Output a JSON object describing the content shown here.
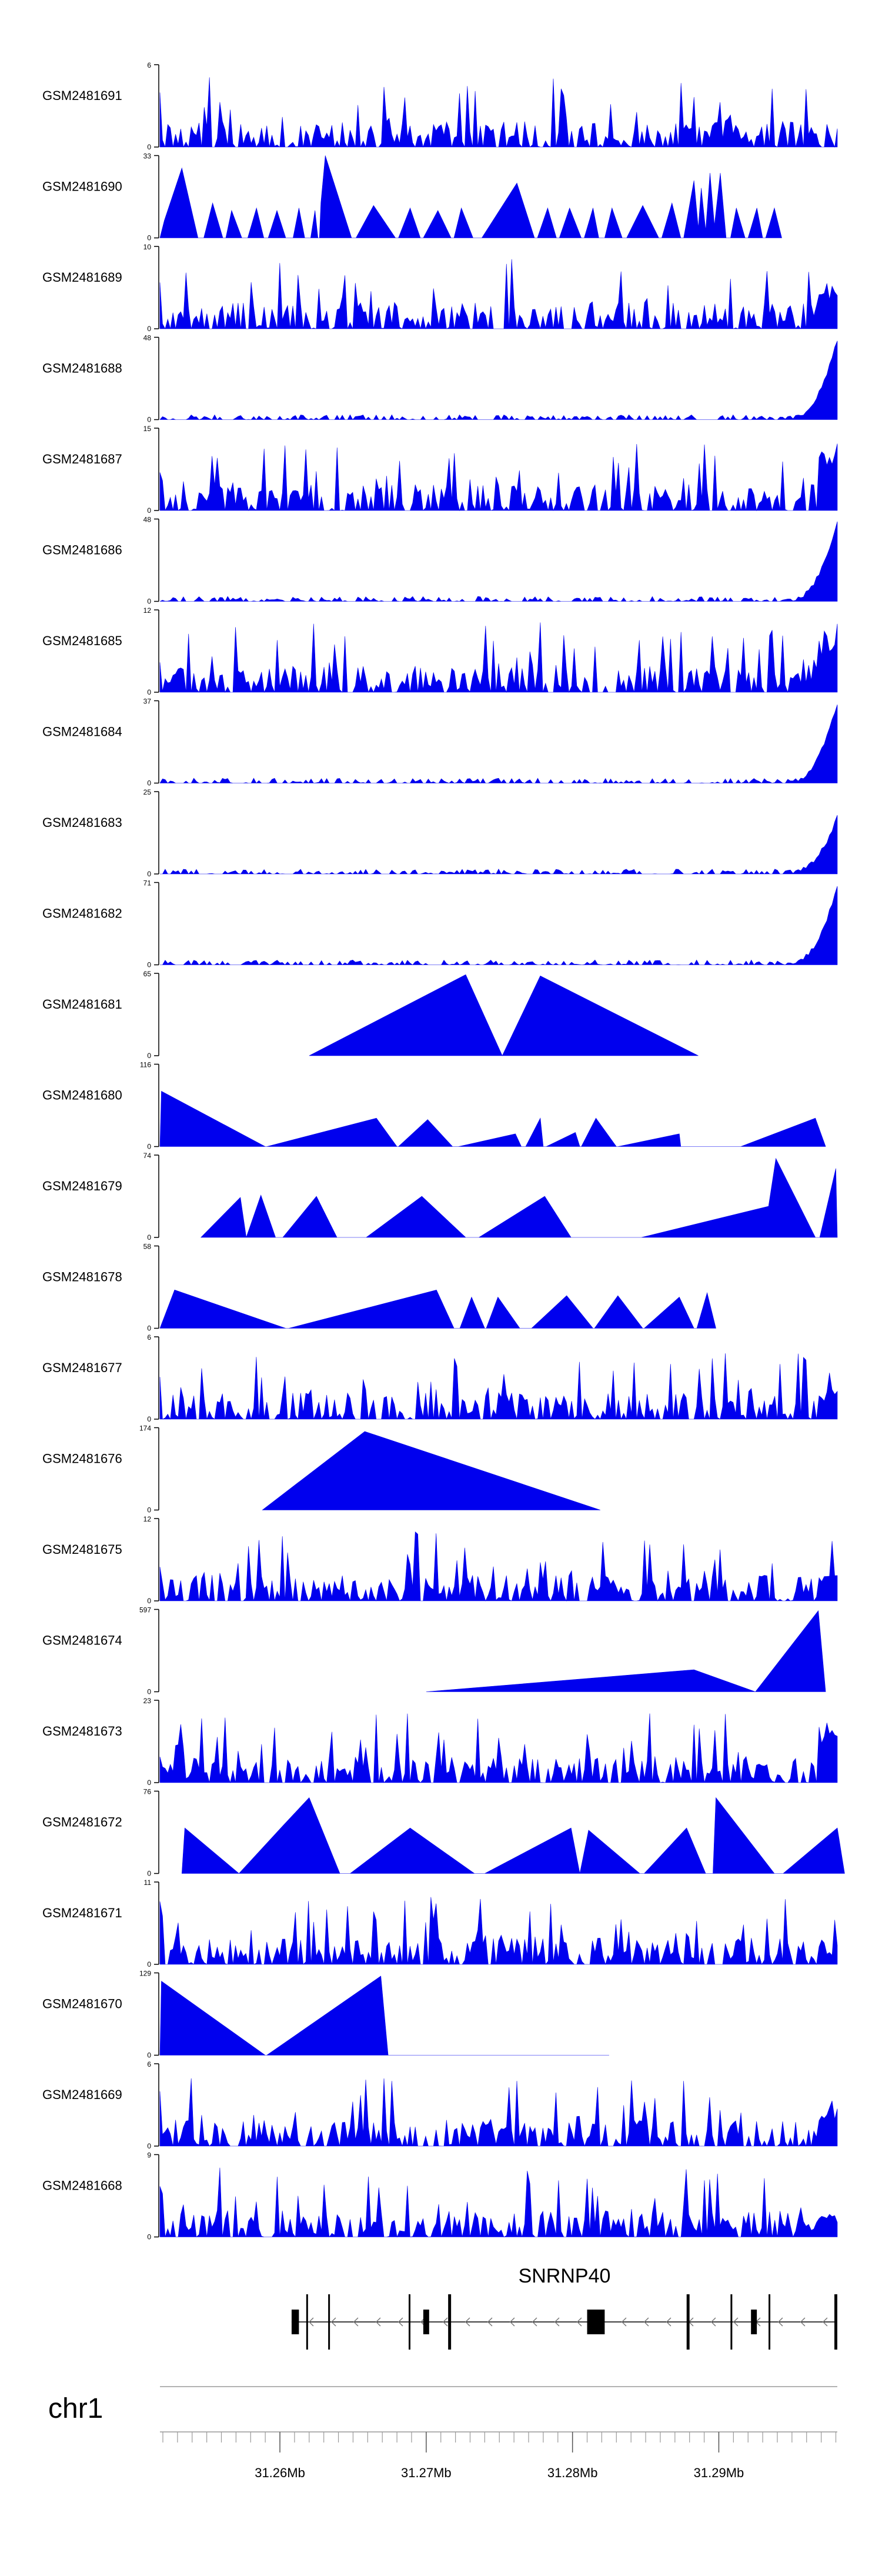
{
  "colors": {
    "fill": "#0000ee",
    "axis": "#000000",
    "track_line": "#999999",
    "gene": "#000000"
  },
  "chart_data": {
    "type": "area",
    "title": "",
    "genome": {
      "chromosome": "chr1",
      "x_range_mb": [
        31.2518,
        31.2981
      ]
    },
    "x_axis": {
      "ticks_mb": [
        31.26,
        31.27,
        31.28,
        31.29
      ],
      "tick_labels": [
        "31.26Mb",
        "31.27Mb",
        "31.28Mb",
        "31.29Mb"
      ],
      "minor_tick_step_mb": 0.001
    },
    "gene": {
      "name": "SNRNP40",
      "strand": "-",
      "start_mb": 31.2608,
      "end_mb": 31.2981,
      "exons_mb": [
        [
          31.2608,
          31.2613
        ],
        [
          31.2618,
          31.2619
        ],
        [
          31.2633,
          31.2634
        ],
        [
          31.2688,
          31.2689
        ],
        [
          31.2698,
          31.2702
        ],
        [
          31.2715,
          31.2717
        ],
        [
          31.281,
          31.2822
        ],
        [
          31.2878,
          31.288
        ],
        [
          31.2908,
          31.2909
        ],
        [
          31.2922,
          31.2926
        ],
        [
          31.2934,
          31.2935
        ],
        [
          31.2979,
          31.2981
        ]
      ]
    },
    "series": [
      {
        "name": "GSM2481691",
        "ymax": 6,
        "kind": "dense",
        "seed": 1691,
        "ramp": 0,
        "points": []
      },
      {
        "name": "GSM2481690",
        "ymax": 33,
        "kind": "sparse",
        "points": [
          [
            31.2518,
            0
          ],
          [
            31.2521,
            7
          ],
          [
            31.2533,
            28
          ],
          [
            31.2544,
            0
          ],
          [
            31.2548,
            0
          ],
          [
            31.2554,
            14
          ],
          [
            31.2561,
            0
          ],
          [
            31.2563,
            0
          ],
          [
            31.2567,
            11
          ],
          [
            31.2574,
            0
          ],
          [
            31.2578,
            0
          ],
          [
            31.2584,
            12
          ],
          [
            31.2589,
            0
          ],
          [
            31.2592,
            0
          ],
          [
            31.2598,
            11
          ],
          [
            31.2604,
            0
          ],
          [
            31.2609,
            0
          ],
          [
            31.2613,
            12
          ],
          [
            31.2617,
            0
          ],
          [
            31.2621,
            0
          ],
          [
            31.2624,
            11
          ],
          [
            31.2626,
            0
          ],
          [
            31.2627,
            0
          ],
          [
            31.2628,
            14
          ],
          [
            31.2631,
            33
          ],
          [
            31.2649,
            0
          ],
          [
            31.2652,
            0
          ],
          [
            31.2664,
            13
          ],
          [
            31.2679,
            0
          ],
          [
            31.2681,
            0
          ],
          [
            31.2689,
            12
          ],
          [
            31.2696,
            0
          ],
          [
            31.2698,
            0
          ],
          [
            31.2708,
            11
          ],
          [
            31.2717,
            0
          ],
          [
            31.2719,
            0
          ],
          [
            31.2724,
            12
          ],
          [
            31.2732,
            0
          ],
          [
            31.2738,
            0
          ],
          [
            31.2762,
            22
          ],
          [
            31.2774,
            0
          ],
          [
            31.2776,
            0
          ],
          [
            31.2783,
            12
          ],
          [
            31.2789,
            0
          ],
          [
            31.2791,
            0
          ],
          [
            31.2798,
            12
          ],
          [
            31.2806,
            0
          ],
          [
            31.2808,
            0
          ],
          [
            31.2814,
            12
          ],
          [
            31.2818,
            0
          ],
          [
            31.2822,
            0
          ],
          [
            31.2827,
            12
          ],
          [
            31.2834,
            0
          ],
          [
            31.2837,
            0
          ],
          [
            31.2848,
            13
          ],
          [
            31.2859,
            0
          ],
          [
            31.2861,
            0
          ],
          [
            31.2868,
            14
          ],
          [
            31.2874,
            0
          ],
          [
            31.2876,
            0
          ],
          [
            31.2883,
            23
          ],
          [
            31.2886,
            4
          ],
          [
            31.2888,
            20
          ],
          [
            31.2891,
            3
          ],
          [
            31.2894,
            26
          ],
          [
            31.2897,
            5
          ],
          [
            31.2901,
            26
          ],
          [
            31.2905,
            0
          ],
          [
            31.2908,
            0
          ],
          [
            31.2912,
            12
          ],
          [
            31.2918,
            0
          ],
          [
            31.292,
            0
          ],
          [
            31.2926,
            12
          ],
          [
            31.293,
            0
          ],
          [
            31.2932,
            0
          ],
          [
            31.2938,
            12
          ],
          [
            31.2943,
            0
          ]
        ]
      },
      {
        "name": "GSM2481689",
        "ymax": 10,
        "kind": "dense",
        "seed": 1689,
        "ramp": 0.6,
        "points": []
      },
      {
        "name": "GSM2481688",
        "ymax": 48,
        "kind": "tail",
        "seed": 1688,
        "ramp": 1,
        "points": []
      },
      {
        "name": "GSM2481687",
        "ymax": 15,
        "kind": "dense",
        "seed": 1687,
        "ramp": 1,
        "points": []
      },
      {
        "name": "GSM2481686",
        "ymax": 48,
        "kind": "tail",
        "seed": 1686,
        "ramp": 1,
        "points": []
      },
      {
        "name": "GSM2481685",
        "ymax": 12,
        "kind": "dense",
        "seed": 1685,
        "ramp": 0.8,
        "points": []
      },
      {
        "name": "GSM2481684",
        "ymax": 37,
        "kind": "tail",
        "seed": 1684,
        "ramp": 1,
        "points": []
      },
      {
        "name": "GSM2481683",
        "ymax": 25,
        "kind": "tail",
        "seed": 1683,
        "ramp": 0.7,
        "points": []
      },
      {
        "name": "GSM2481682",
        "ymax": 71,
        "kind": "tail",
        "seed": 1682,
        "ramp": 1,
        "points": []
      },
      {
        "name": "GSM2481681",
        "ymax": 65,
        "kind": "sparse",
        "points": [
          [
            31.262,
            0
          ],
          [
            31.2727,
            64
          ],
          [
            31.2752,
            0
          ],
          [
            31.2778,
            63
          ],
          [
            31.2886,
            0
          ]
        ]
      },
      {
        "name": "GSM2481680",
        "ymax": 116,
        "kind": "sparse",
        "points": [
          [
            31.2518,
            0
          ],
          [
            31.2519,
            78
          ],
          [
            31.259,
            0
          ],
          [
            31.2591,
            0
          ],
          [
            31.2666,
            40
          ],
          [
            31.268,
            0
          ],
          [
            31.2681,
            0
          ],
          [
            31.2701,
            38
          ],
          [
            31.2718,
            0
          ],
          [
            31.2722,
            0
          ],
          [
            31.2761,
            18
          ],
          [
            31.2765,
            0
          ],
          [
            31.2768,
            0
          ],
          [
            31.2778,
            40
          ],
          [
            31.278,
            0
          ],
          [
            31.2782,
            0
          ],
          [
            31.2802,
            20
          ],
          [
            31.2805,
            0
          ],
          [
            31.2806,
            0
          ],
          [
            31.2816,
            40
          ],
          [
            31.283,
            0
          ],
          [
            31.2831,
            0
          ],
          [
            31.2873,
            18
          ],
          [
            31.2874,
            0
          ],
          [
            31.2915,
            0
          ],
          [
            31.2966,
            40
          ],
          [
            31.2973,
            0
          ]
        ]
      },
      {
        "name": "GSM2481679",
        "ymax": 74,
        "kind": "sparse",
        "points": [
          [
            31.2546,
            0
          ],
          [
            31.2573,
            36
          ],
          [
            31.2577,
            0
          ],
          [
            31.2587,
            38
          ],
          [
            31.2597,
            0
          ],
          [
            31.2602,
            0
          ],
          [
            31.2625,
            37
          ],
          [
            31.2639,
            0
          ],
          [
            31.2659,
            0
          ],
          [
            31.2697,
            37
          ],
          [
            31.2727,
            0
          ],
          [
            31.2736,
            0
          ],
          [
            31.2781,
            37
          ],
          [
            31.2799,
            0
          ],
          [
            31.2847,
            0
          ],
          [
            31.2934,
            28
          ],
          [
            31.2939,
            71
          ],
          [
            31.2966,
            0
          ],
          [
            31.2969,
            0
          ],
          [
            31.298,
            62
          ],
          [
            31.2981,
            0
          ]
        ]
      },
      {
        "name": "GSM2481678",
        "ymax": 58,
        "kind": "sparse",
        "points": [
          [
            31.2518,
            0
          ],
          [
            31.2528,
            27
          ],
          [
            31.2604,
            0
          ],
          [
            31.2606,
            0
          ],
          [
            31.2707,
            27
          ],
          [
            31.2719,
            0
          ],
          [
            31.2723,
            0
          ],
          [
            31.2731,
            22
          ],
          [
            31.274,
            0
          ],
          [
            31.2741,
            0
          ],
          [
            31.2749,
            22
          ],
          [
            31.2764,
            0
          ],
          [
            31.2772,
            0
          ],
          [
            31.2796,
            23
          ],
          [
            31.2814,
            0
          ],
          [
            31.2815,
            0
          ],
          [
            31.2831,
            23
          ],
          [
            31.2848,
            0
          ],
          [
            31.2849,
            0
          ],
          [
            31.2873,
            22
          ],
          [
            31.2883,
            0
          ],
          [
            31.2885,
            0
          ],
          [
            31.2892,
            25
          ],
          [
            31.2898,
            0
          ]
        ]
      },
      {
        "name": "GSM2481677",
        "ymax": 6,
        "kind": "dense",
        "seed": 1677,
        "ramp": 0.4,
        "points": []
      },
      {
        "name": "GSM2481676",
        "ymax": 174,
        "kind": "sparse",
        "points": [
          [
            31.2588,
            0
          ],
          [
            31.2658,
            166
          ],
          [
            31.2819,
            0
          ]
        ]
      },
      {
        "name": "GSM2481675",
        "ymax": 12,
        "kind": "dense",
        "seed": 1675,
        "ramp": 0.4,
        "points": []
      },
      {
        "name": "GSM2481674",
        "ymax": 597,
        "kind": "sparse",
        "points": [
          [
            31.27,
            0
          ],
          [
            31.2883,
            160
          ],
          [
            31.2925,
            0
          ],
          [
            31.2968,
            588
          ],
          [
            31.2973,
            0
          ]
        ]
      },
      {
        "name": "GSM2481673",
        "ymax": 23,
        "kind": "dense",
        "seed": 1673,
        "ramp": 0.8,
        "points": []
      },
      {
        "name": "GSM2481672",
        "ymax": 76,
        "kind": "sparse",
        "points": [
          [
            31.2533,
            0
          ],
          [
            31.2535,
            42
          ],
          [
            31.2572,
            0
          ],
          [
            31.2602,
            44
          ],
          [
            31.262,
            70
          ],
          [
            31.2641,
            0
          ],
          [
            31.2648,
            0
          ],
          [
            31.2689,
            42
          ],
          [
            31.2733,
            0
          ],
          [
            31.274,
            0
          ],
          [
            31.2799,
            42
          ],
          [
            31.2805,
            0
          ],
          [
            31.2811,
            40
          ],
          [
            31.2846,
            0
          ],
          [
            31.2849,
            0
          ],
          [
            31.2878,
            42
          ],
          [
            31.2891,
            0
          ],
          [
            31.2896,
            0
          ],
          [
            31.2898,
            70
          ],
          [
            31.2938,
            0
          ],
          [
            31.2944,
            0
          ],
          [
            31.2981,
            42
          ],
          [
            31.2986,
            0
          ]
        ]
      },
      {
        "name": "GSM2481671",
        "ymax": 11,
        "kind": "dense",
        "seed": 1671,
        "ramp": 0.2,
        "points": []
      },
      {
        "name": "GSM2481670",
        "ymax": 129,
        "kind": "sparse",
        "points": [
          [
            31.2518,
            0
          ],
          [
            31.2519,
            116
          ],
          [
            31.259,
            0
          ],
          [
            31.2591,
            0
          ],
          [
            31.2669,
            124
          ],
          [
            31.2674,
            0
          ],
          [
            31.2825,
            0
          ]
        ]
      },
      {
        "name": "GSM2481669",
        "ymax": 6,
        "kind": "dense",
        "seed": 1669,
        "ramp": 0.5,
        "points": []
      },
      {
        "name": "GSM2481668",
        "ymax": 9,
        "kind": "dense",
        "seed": 1668,
        "ramp": 0.3,
        "points": []
      }
    ]
  }
}
